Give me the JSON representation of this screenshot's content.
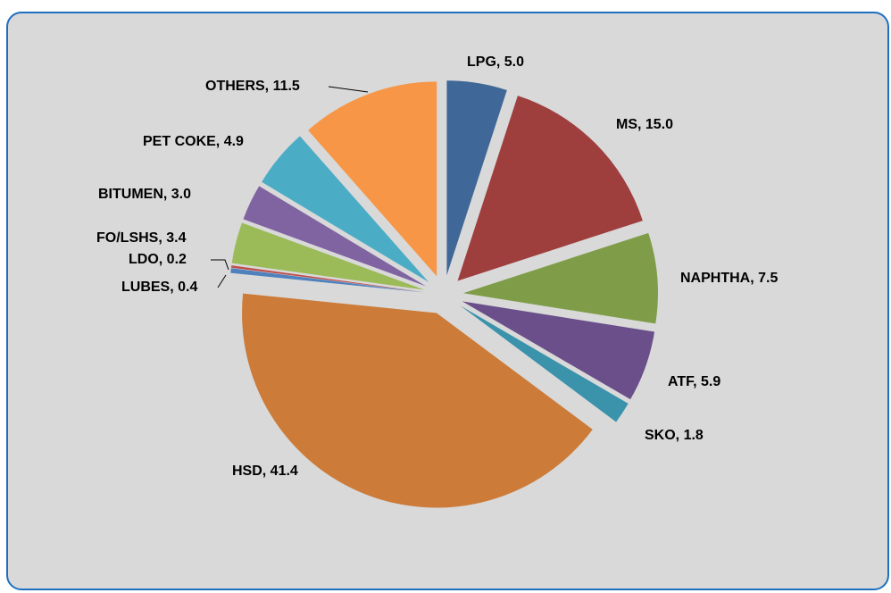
{
  "chart_data": {
    "type": "pie",
    "categories": [
      "LPG",
      "MS",
      "NAPHTHA",
      "ATF",
      "SKO",
      "HSD",
      "LUBES",
      "LDO",
      "FO/LSHS",
      "BITUMEN",
      "PET COKE",
      "OTHERS"
    ],
    "values": [
      5.0,
      15.0,
      7.5,
      5.9,
      1.8,
      41.4,
      0.4,
      0.2,
      3.4,
      3.0,
      4.9,
      11.5
    ],
    "value_labels": [
      "5.0",
      "15.0",
      "7.5",
      "5.9",
      "1.8",
      "41.4",
      "0.4",
      "0.2",
      "3.4",
      "3.0",
      "4.9",
      "11.5"
    ],
    "colors": [
      "#3f6797",
      "#9e3f3e",
      "#7f9d48",
      "#6a4f8a",
      "#3a92ab",
      "#cc7b38",
      "#4f81bd",
      "#c0504d",
      "#9bbb59",
      "#8064a2",
      "#4bacc6",
      "#f79646"
    ]
  }
}
